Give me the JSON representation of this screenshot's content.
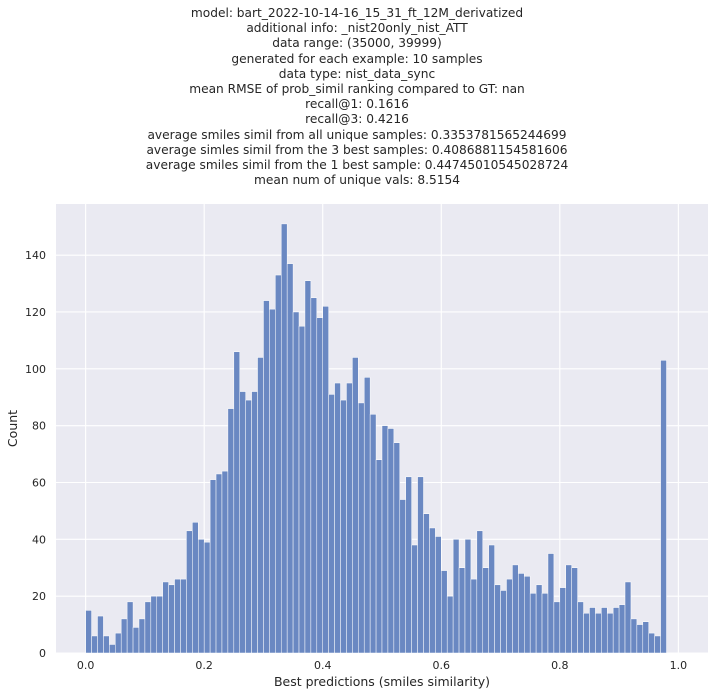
{
  "title_lines": [
    "model: bart_2022-10-14-16_15_31_ft_12M_derivatized",
    "additional info: _nist20only_nist_ATT",
    "data range: (35000, 39999)",
    "generated for each example: 10 samples",
    "data type: nist_data_sync",
    "mean RMSE of prob_simil ranking compared to GT: nan",
    "recall@1: 0.1616",
    "recall@3: 0.4216",
    "average smiles simil from all unique samples: 0.3353781565244699",
    "average simles simil from the 3 best samples: 0.4086881154581606",
    "average smiles simil from the 1 best sample: 0.44745010545028724",
    "mean num of unique vals: 8.5154"
  ],
  "chart_data": {
    "type": "bar",
    "xlabel": "Best predictions (smiles similarity)",
    "ylabel": "Count",
    "xlim": [
      -0.05,
      1.05
    ],
    "ylim": [
      0,
      158
    ],
    "xticks": [
      0.0,
      0.2,
      0.4,
      0.6,
      0.8,
      1.0
    ],
    "xtick_labels": [
      "0.0",
      "0.2",
      "0.4",
      "0.6",
      "0.8",
      "1.0"
    ],
    "yticks": [
      0,
      20,
      40,
      60,
      80,
      100,
      120,
      140
    ],
    "ytick_labels": [
      "0",
      "20",
      "40",
      "60",
      "80",
      "100",
      "120",
      "140"
    ],
    "grid": true,
    "bar_color": "#6a88c2",
    "background_color": "#eaeaf2",
    "bins": {
      "start": 0.0,
      "width": 0.01,
      "counts": [
        15,
        6,
        13,
        6,
        3,
        7,
        12,
        18,
        9,
        12,
        18,
        20,
        20,
        25,
        24,
        26,
        26,
        43,
        46,
        40,
        39,
        61,
        63,
        64,
        86,
        106,
        92,
        89,
        92,
        104,
        124,
        121,
        133,
        151,
        137,
        120,
        115,
        131,
        125,
        118,
        122,
        91,
        95,
        89,
        95,
        104,
        88,
        97,
        84,
        68,
        80,
        79,
        74,
        54,
        62,
        38,
        62,
        49,
        44,
        41,
        29,
        20,
        40,
        30,
        40,
        26,
        43,
        30,
        38,
        24,
        22,
        26,
        31,
        28,
        27,
        21,
        24,
        21,
        35,
        18,
        23,
        31,
        30,
        18,
        14,
        16,
        14,
        16,
        14,
        16,
        17,
        25,
        12,
        10,
        11,
        7,
        6,
        103
      ]
    }
  }
}
